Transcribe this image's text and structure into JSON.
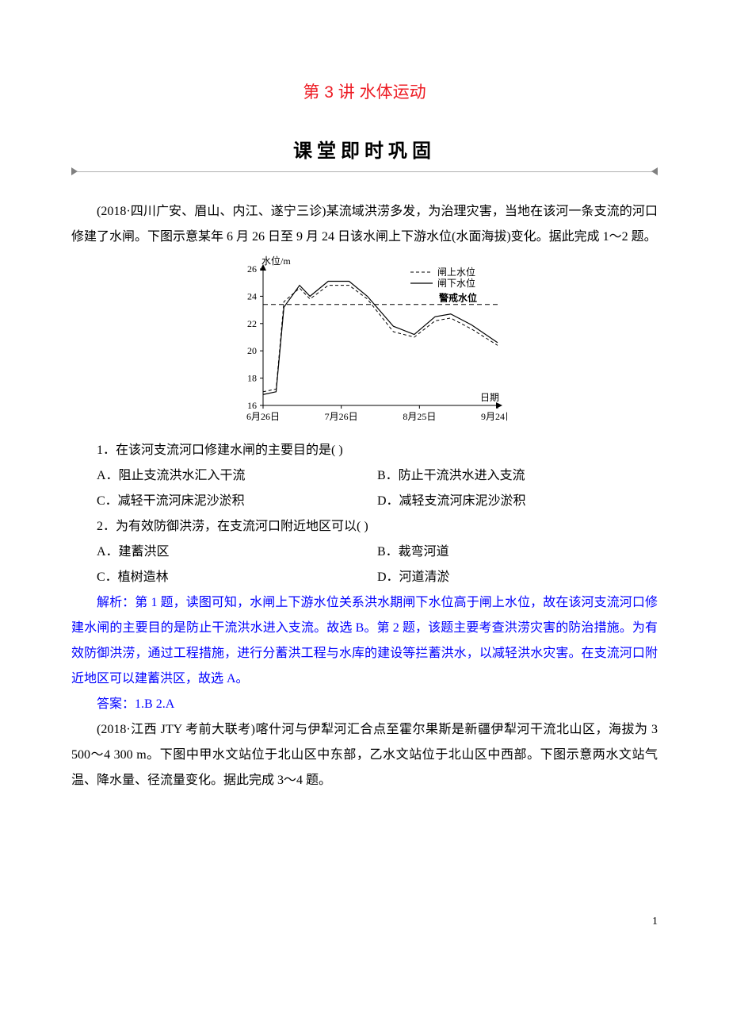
{
  "title": "第 3 讲  水体运动",
  "section_header": "课堂即时巩固",
  "intro": "(2018·四川广安、眉山、内江、遂宁三诊)某流域洪涝多发，为治理灾害，当地在该河一条支流的河口修建了水闸。下图示意某年 6 月 26 日至 9 月 24 日该水闸上下游水位(水面海拔)变化。据此完成 1～2 题。",
  "chart1": {
    "type": "line",
    "ylabel": "水位/m",
    "xlabel": "日期",
    "ylim": [
      16,
      26
    ],
    "ytick_step": 2,
    "yticks": [
      "16",
      "18",
      "20",
      "22",
      "24",
      "26"
    ],
    "xticks": [
      "6月26日",
      "7月26日",
      "8月25日",
      "9月24日"
    ],
    "legend": [
      {
        "label": "闸上水位",
        "style": "dashed",
        "color": "#000000"
      },
      {
        "label": "闸下水位",
        "style": "solid",
        "color": "#000000"
      }
    ],
    "ref_line": {
      "label": "警戒水位",
      "y": 23.4,
      "style": "dashed"
    },
    "series_upper_dashed": [
      {
        "x": 0,
        "y": 17.0
      },
      {
        "x": 5,
        "y": 17.2
      },
      {
        "x": 8,
        "y": 23.6
      },
      {
        "x": 14,
        "y": 24.6
      },
      {
        "x": 18,
        "y": 23.8
      },
      {
        "x": 25,
        "y": 24.8
      },
      {
        "x": 33,
        "y": 24.8
      },
      {
        "x": 40,
        "y": 23.8
      },
      {
        "x": 50,
        "y": 21.4
      },
      {
        "x": 58,
        "y": 21.0
      },
      {
        "x": 66,
        "y": 22.2
      },
      {
        "x": 72,
        "y": 22.4
      },
      {
        "x": 80,
        "y": 21.6
      },
      {
        "x": 90,
        "y": 20.4
      }
    ],
    "series_lower_solid": [
      {
        "x": 0,
        "y": 16.8
      },
      {
        "x": 5,
        "y": 17.0
      },
      {
        "x": 8,
        "y": 23.2
      },
      {
        "x": 14,
        "y": 24.8
      },
      {
        "x": 18,
        "y": 24.0
      },
      {
        "x": 25,
        "y": 25.1
      },
      {
        "x": 33,
        "y": 25.1
      },
      {
        "x": 40,
        "y": 24.0
      },
      {
        "x": 50,
        "y": 21.8
      },
      {
        "x": 58,
        "y": 21.2
      },
      {
        "x": 66,
        "y": 22.5
      },
      {
        "x": 72,
        "y": 22.7
      },
      {
        "x": 80,
        "y": 21.9
      },
      {
        "x": 90,
        "y": 20.6
      }
    ],
    "background_color": "#ffffff",
    "line_width": 1,
    "font_size": 12
  },
  "q1": {
    "stem": "1．在该河支流河口修建水闸的主要目的是(      )",
    "A": "A．阻止支流洪水汇入干流",
    "B": "B．防止干流洪水进入支流",
    "C": "C．减轻干流河床泥沙淤积",
    "D": "D．减轻支流河床泥沙淤积"
  },
  "q2": {
    "stem": "2．为有效防御洪涝，在支流河口附近地区可以(      )",
    "A": "A．建蓄洪区",
    "B": "B．裁弯河道",
    "C": "C．植树造林",
    "D": "D．河道清淤"
  },
  "analysis_label": "解析：",
  "analysis_text": "第 1 题，读图可知，水闸上下游水位关系洪水期闸下水位高于闸上水位，故在该河支流河口修建水闸的主要目的是防止干流洪水进入支流。故选 B。第 2 题，该题主要考查洪涝灾害的防治措施。为有效防御洪涝，通过工程措施，进行分蓄洪工程与水库的建设等拦蓄洪水，以减轻洪水灾害。在支流河口附近地区可以建蓄洪区，故选 A。",
  "answer_label": "答案：",
  "answer_text": "1.B  2.A",
  "intro2": "(2018·江西 JTY 考前大联考)喀什河与伊犁河汇合点至霍尔果斯是新疆伊犁河干流北山区，海拔为 3 500～4 300 m。下图中甲水文站位于北山区中东部，乙水文站位于北山区中西部。下图示意两水文站气温、降水量、径流量变化。据此完成 3～4 题。",
  "page_number": "1"
}
